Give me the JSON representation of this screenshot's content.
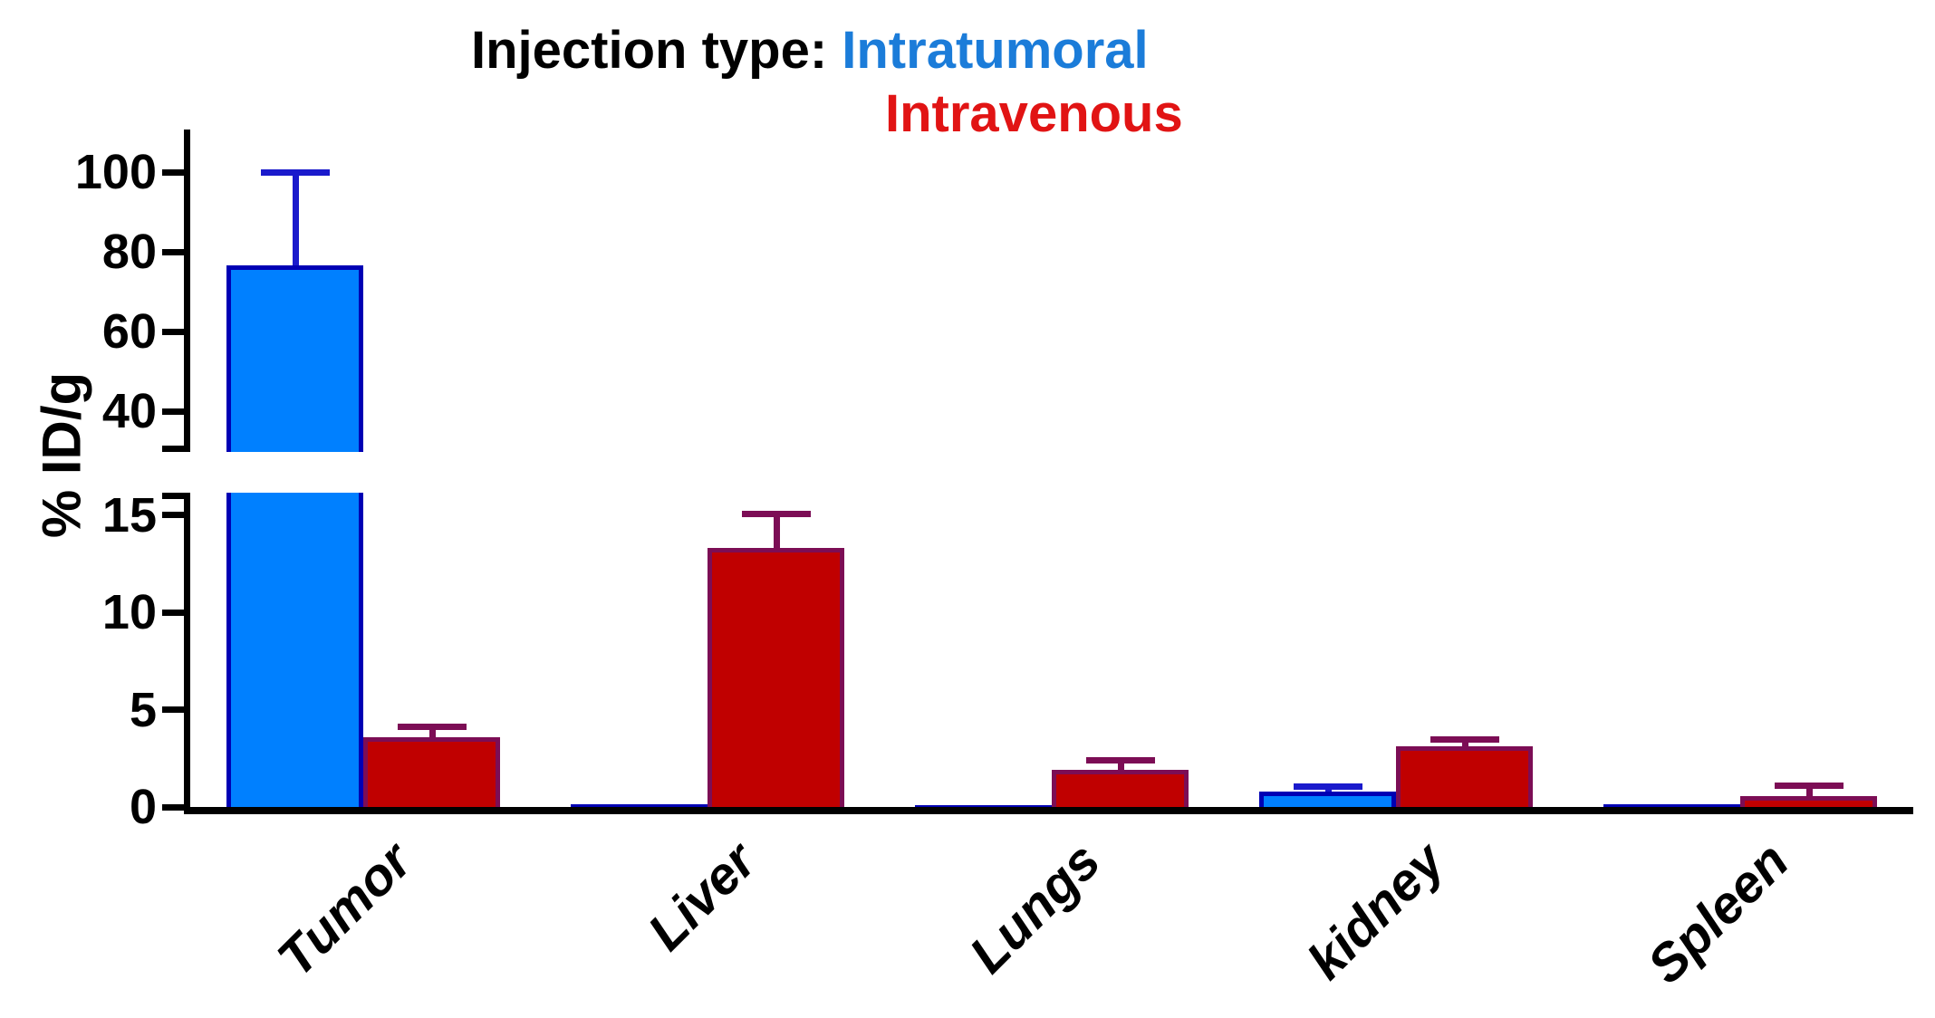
{
  "title": {
    "prefix": "Injection type: ",
    "series_1_label": "Intratumoral",
    "series_2_label": "Intravenous",
    "series_1_color": "#1B7CD9",
    "series_2_color": "#E11414"
  },
  "chart_data": {
    "type": "bar",
    "title": "Injection type: Intratumoral / Intravenous",
    "ylabel": "% ID/g",
    "categories": [
      "Tumor",
      "Liver",
      "Lungs",
      "kidney",
      "Spleen"
    ],
    "series": [
      {
        "name": "Intratumoral",
        "fill": "#0080FF",
        "border": "#0000B4",
        "error_color": "#1A1ACC",
        "values": [
          76.5,
          0.15,
          0.1,
          0.8,
          0.15
        ],
        "errors": [
          23.5,
          0,
          0,
          0.25,
          0
        ]
      },
      {
        "name": "Intravenous",
        "fill": "#C00000",
        "border": "#7C0D55",
        "error_color": "#7C0D55",
        "values": [
          3.6,
          13.3,
          1.9,
          3.1,
          0.55
        ],
        "errors": [
          0.55,
          1.75,
          0.5,
          0.4,
          0.55
        ]
      }
    ],
    "y_axis": {
      "label": "% ID/g",
      "axis_break": true,
      "lower_ticks": [
        0,
        5,
        10,
        15
      ],
      "upper_ticks": [
        40,
        60,
        80,
        100
      ],
      "lower_range": [
        0,
        16.1
      ],
      "upper_range": [
        30.5,
        110.5
      ]
    },
    "axis_color": "#000000",
    "grid": false,
    "legend_position": "in-title"
  }
}
